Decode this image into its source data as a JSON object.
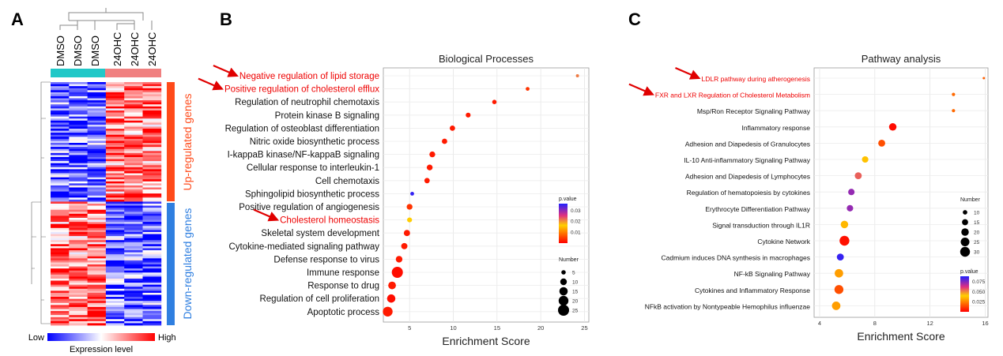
{
  "panels": {
    "a": "A",
    "b": "B",
    "c": "C"
  },
  "heatmap": {
    "samples": [
      "DMSO",
      "DMSO",
      "DMSO",
      "24OHC",
      "24OHC",
      "24OHC"
    ],
    "group_colors": [
      "#20c8c8",
      "#f08080"
    ],
    "up_label": "Up-regulated genes",
    "down_label": "Down-regulated genes",
    "up_color": "#ff4a1a",
    "down_color": "#2f7fe0",
    "legend_low": "Low",
    "legend_high": "High",
    "legend_title": "Expression level"
  },
  "chart_data": [
    {
      "type": "scatter",
      "title": "Biological Processes",
      "xlabel": "Enrichment Score",
      "ylabel": "",
      "xlim": [
        2,
        25.5
      ],
      "xticks": [
        5,
        10,
        15,
        20,
        25
      ],
      "grid": true,
      "categories": [
        "Negative regulation of lipid storage",
        "Positive regulation of cholesterol efflux",
        "Regulation of neutrophil chemotaxis",
        "Protein kinase B signaling",
        "Regulation of osteoblast differentiation",
        "Nitric oxide biosynthetic process",
        "I-kappaB kinase/NF-kappaB signaling",
        "Cellular response to interleukin-1",
        "Cell chemotaxis",
        "Sphingolipid biosynthetic process",
        "Positive regulation of angiogenesis",
        "Cholesterol homeostasis",
        "Skeletal system development",
        "Cytokine-mediated signaling pathway",
        "Defense response to virus",
        "Immune response",
        "Response to drug",
        "Regulation of cell proliferation",
        "Apoptotic process"
      ],
      "highlighted": [
        0,
        1,
        11
      ],
      "arrows": [
        0,
        1,
        11
      ],
      "enrichment": [
        24.2,
        18.5,
        14.7,
        11.7,
        9.9,
        9.0,
        7.6,
        7.3,
        7.0,
        5.3,
        5.0,
        5.0,
        4.7,
        4.4,
        3.8,
        3.6,
        3.0,
        2.9,
        2.5
      ],
      "number": [
        3,
        4,
        5,
        6,
        7,
        7,
        8,
        8,
        7,
        4,
        8,
        6,
        9,
        9,
        10,
        25,
        13,
        15,
        20
      ],
      "pvalue": [
        0.021,
        0.004,
        0.002,
        0.002,
        0.002,
        0.002,
        0.002,
        0.002,
        0.002,
        0.035,
        0.004,
        0.016,
        0.002,
        0.002,
        0.002,
        0.001,
        0.002,
        0.001,
        0.002
      ],
      "color_legend": {
        "title": "p.value",
        "ticks": [
          0.01,
          0.02,
          0.03
        ],
        "tick_labels": [
          "0.01",
          "0.02",
          "0.03"
        ],
        "domain": [
          0.0,
          0.036
        ]
      },
      "size_legend": {
        "title": "Number",
        "values": [
          5,
          10,
          15,
          20,
          25
        ]
      }
    },
    {
      "type": "scatter",
      "title": "Pathway analysis",
      "xlabel": "Enrichment Score",
      "ylabel": "",
      "xlim": [
        3.6,
        16.2
      ],
      "xticks": [
        4,
        8,
        12,
        16
      ],
      "grid": true,
      "categories": [
        "LDLR pathway during atherogenesis",
        "FXR and LXR Regulation of Cholesterol Metabolism",
        "Msp/Ron Receptor Signaling Pathway",
        "Inflammatory response",
        "Adhesion and Diapedesis of Granulocytes",
        "IL-10 Anti-inflammatory Signaling Pathway",
        "Adhesion and Diapedesis of Lymphocytes",
        "Regulation of hematopoiesis by cytokines",
        "Erythrocyte Differentiation Pathway",
        "Signal transduction through IL1R",
        "Cytokine Network",
        "Cadmium induces DNA synthesis in macrophages",
        "NF-kB Signaling Pathway",
        "Cytokines and Inflammatory Response",
        "NFkB activation by Nontypeable Hemophilus influenzae"
      ],
      "highlighted": [
        0,
        1
      ],
      "arrows": [
        0,
        1
      ],
      "enrichment": [
        15.9,
        13.7,
        13.7,
        9.3,
        8.5,
        7.3,
        6.8,
        6.3,
        6.2,
        5.8,
        5.8,
        5.5,
        5.4,
        5.4,
        5.2
      ],
      "number": [
        5,
        7,
        7,
        20,
        18,
        16,
        18,
        16,
        16,
        20,
        30,
        18,
        24,
        26,
        24
      ],
      "pvalue": [
        0.018,
        0.02,
        0.02,
        0.002,
        0.015,
        0.037,
        0.055,
        0.072,
        0.072,
        0.035,
        0.003,
        0.085,
        0.03,
        0.015,
        0.03
      ],
      "color_legend": {
        "title": "p.value",
        "ticks": [
          0.025,
          0.05,
          0.075
        ],
        "tick_labels": [
          "0.025",
          "0.050",
          "0.075"
        ],
        "domain": [
          0.0,
          0.088
        ]
      },
      "size_legend": {
        "title": "Number",
        "values": [
          10,
          15,
          20,
          25,
          30
        ]
      }
    }
  ]
}
